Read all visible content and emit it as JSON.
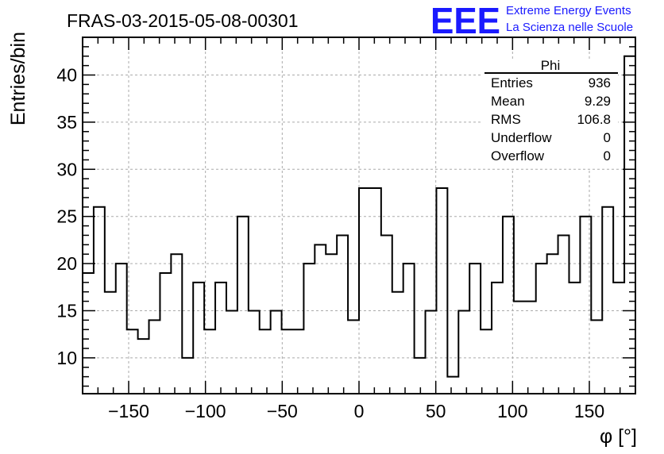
{
  "header": {
    "title": "FRAS-03-2015-05-08-00301",
    "logo_text": "EEE",
    "org_line1": "Extreme Energy Events",
    "org_line2": "La Scienza nelle Scuole",
    "logo_color": "#1a1aff"
  },
  "stats_box": {
    "name": "Phi",
    "rows": [
      {
        "label": "Entries",
        "value": "936"
      },
      {
        "label": "Mean",
        "value": "9.29"
      },
      {
        "label": "RMS",
        "value": "106.8"
      },
      {
        "label": "Underflow",
        "value": "0"
      },
      {
        "label": "Overflow",
        "value": "0"
      }
    ]
  },
  "chart_data": {
    "type": "bar",
    "histogram": true,
    "xlabel": "φ [°]",
    "ylabel": "Entries/bin",
    "xlim": [
      -180,
      180
    ],
    "ylim": [
      6.2,
      44
    ],
    "bin_width": 7.2,
    "x_ticks": [
      -150,
      -100,
      -50,
      0,
      50,
      100,
      150
    ],
    "x_tick_labels": [
      "−150",
      "−100",
      "−50",
      "0",
      "50",
      "100",
      "150"
    ],
    "y_ticks": [
      10,
      15,
      20,
      25,
      30,
      35,
      40
    ],
    "y_tick_labels": [
      "10",
      "15",
      "20",
      "25",
      "30",
      "35",
      "40"
    ],
    "grid": true,
    "values": [
      19,
      26,
      17,
      20,
      13,
      12,
      14,
      19,
      21,
      10,
      18,
      13,
      18,
      15,
      25,
      15,
      13,
      15,
      13,
      13,
      20,
      22,
      21,
      23,
      14,
      28,
      28,
      23,
      17,
      20,
      10,
      15,
      28,
      8,
      15,
      20,
      13,
      18,
      25,
      16,
      16,
      20,
      21,
      23,
      18,
      25,
      14,
      26,
      18,
      42
    ]
  }
}
